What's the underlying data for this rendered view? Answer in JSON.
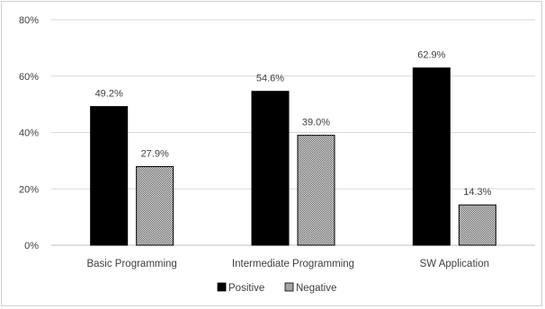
{
  "chart_data": {
    "type": "bar",
    "categories": [
      "Basic Programming",
      "Intermediate Programming",
      "SW Application"
    ],
    "series": [
      {
        "name": "Positive",
        "values": [
          49.2,
          54.6,
          62.9
        ],
        "labels": [
          "49.2%",
          "54.6%",
          "62.9%"
        ],
        "fill": "solid",
        "color": "#000000"
      },
      {
        "name": "Negative",
        "values": [
          27.9,
          39.0,
          14.3
        ],
        "labels": [
          "27.9%",
          "39.0%",
          "14.3%"
        ],
        "fill": "hatch",
        "color": "#6f6f6f"
      }
    ],
    "y_ticks": [
      "0%",
      "20%",
      "40%",
      "60%",
      "80%"
    ],
    "ylim": [
      0,
      80
    ],
    "grid": true,
    "legend_position": "bottom",
    "title": "",
    "xlabel": "",
    "ylabel": ""
  }
}
